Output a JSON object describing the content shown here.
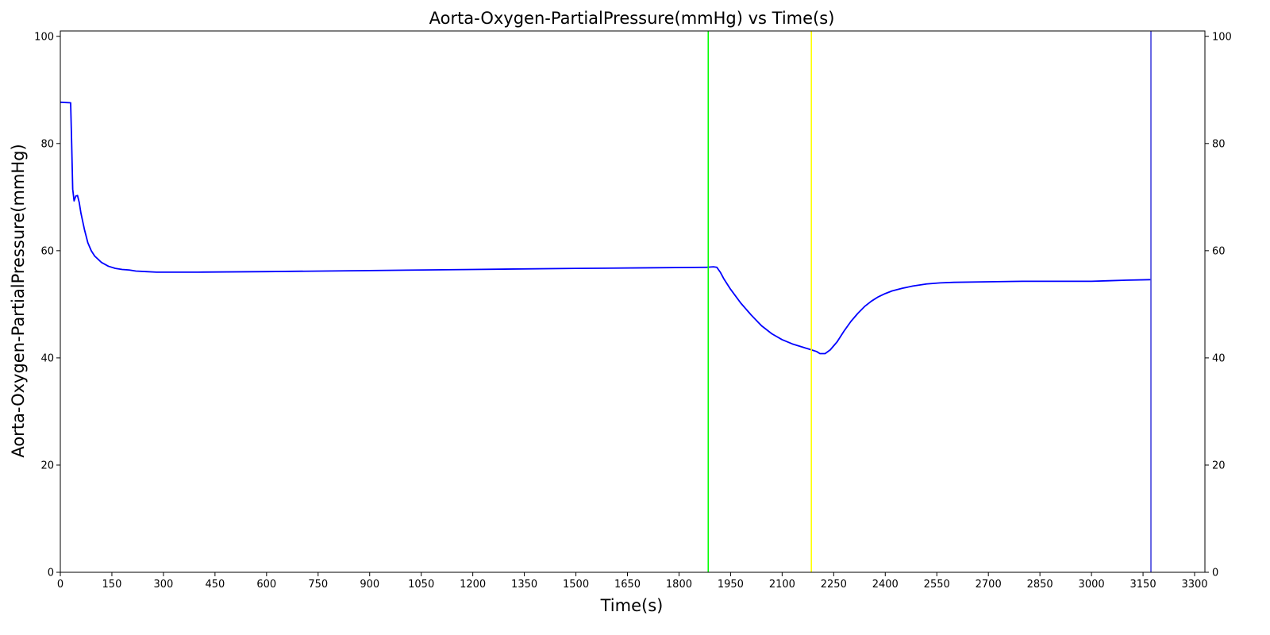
{
  "chart_data": {
    "type": "line",
    "title": "Aorta-Oxygen-PartialPressure(mmHg) vs Time(s)",
    "xlabel": "Time(s)",
    "ylabel": "Aorta-Oxygen-PartialPressure(mmHg)",
    "xlim": [
      0,
      3330
    ],
    "ylim": [
      0,
      101
    ],
    "x_ticks": [
      0,
      150,
      300,
      450,
      600,
      750,
      900,
      1050,
      1200,
      1350,
      1500,
      1650,
      1800,
      1950,
      2100,
      2250,
      2400,
      2550,
      2700,
      2850,
      3000,
      3150,
      3300
    ],
    "y_ticks": [
      0,
      20,
      40,
      60,
      80,
      100
    ],
    "right_y_ticks": [
      0,
      20,
      40,
      60,
      80,
      100
    ],
    "grid": false,
    "colors": {
      "series": "#0000ff",
      "marker_1": "#00ff00",
      "marker_2": "#ffff00",
      "marker_3": "#4444dd",
      "axes": "#000000"
    },
    "vertical_markers": [
      {
        "x": 1885,
        "color": "#00ff00"
      },
      {
        "x": 2185,
        "color": "#ffff00"
      },
      {
        "x": 3173,
        "color": "#4444dd"
      }
    ],
    "series": [
      {
        "color": "#0000ff",
        "points": [
          [
            0,
            87.7
          ],
          [
            30,
            87.6
          ],
          [
            33,
            80
          ],
          [
            36,
            71.5
          ],
          [
            40,
            69.3
          ],
          [
            45,
            70.2
          ],
          [
            50,
            70.3
          ],
          [
            55,
            69
          ],
          [
            60,
            67
          ],
          [
            70,
            64
          ],
          [
            80,
            61.5
          ],
          [
            90,
            60
          ],
          [
            100,
            59
          ],
          [
            120,
            57.8
          ],
          [
            140,
            57.1
          ],
          [
            160,
            56.7
          ],
          [
            180,
            56.5
          ],
          [
            200,
            56.4
          ],
          [
            220,
            56.2
          ],
          [
            250,
            56.1
          ],
          [
            280,
            56
          ],
          [
            300,
            56
          ],
          [
            400,
            56
          ],
          [
            600,
            56.1
          ],
          [
            900,
            56.3
          ],
          [
            1200,
            56.5
          ],
          [
            1500,
            56.7
          ],
          [
            1700,
            56.8
          ],
          [
            1880,
            56.9
          ],
          [
            1900,
            57
          ],
          [
            1910,
            56.9
          ],
          [
            1920,
            56
          ],
          [
            1930,
            54.8
          ],
          [
            1950,
            52.8
          ],
          [
            1980,
            50.2
          ],
          [
            2010,
            48
          ],
          [
            2040,
            46
          ],
          [
            2070,
            44.5
          ],
          [
            2100,
            43.4
          ],
          [
            2130,
            42.6
          ],
          [
            2160,
            42
          ],
          [
            2185,
            41.5
          ],
          [
            2200,
            41.2
          ],
          [
            2210,
            40.8
          ],
          [
            2225,
            40.8
          ],
          [
            2240,
            41.5
          ],
          [
            2260,
            43
          ],
          [
            2280,
            45
          ],
          [
            2300,
            46.8
          ],
          [
            2320,
            48.3
          ],
          [
            2340,
            49.6
          ],
          [
            2360,
            50.6
          ],
          [
            2380,
            51.4
          ],
          [
            2400,
            52
          ],
          [
            2420,
            52.5
          ],
          [
            2450,
            53
          ],
          [
            2480,
            53.4
          ],
          [
            2520,
            53.8
          ],
          [
            2560,
            54
          ],
          [
            2600,
            54.1
          ],
          [
            2700,
            54.2
          ],
          [
            2800,
            54.3
          ],
          [
            2900,
            54.3
          ],
          [
            3000,
            54.3
          ],
          [
            3050,
            54.4
          ],
          [
            3100,
            54.5
          ],
          [
            3173,
            54.6
          ]
        ]
      }
    ]
  }
}
